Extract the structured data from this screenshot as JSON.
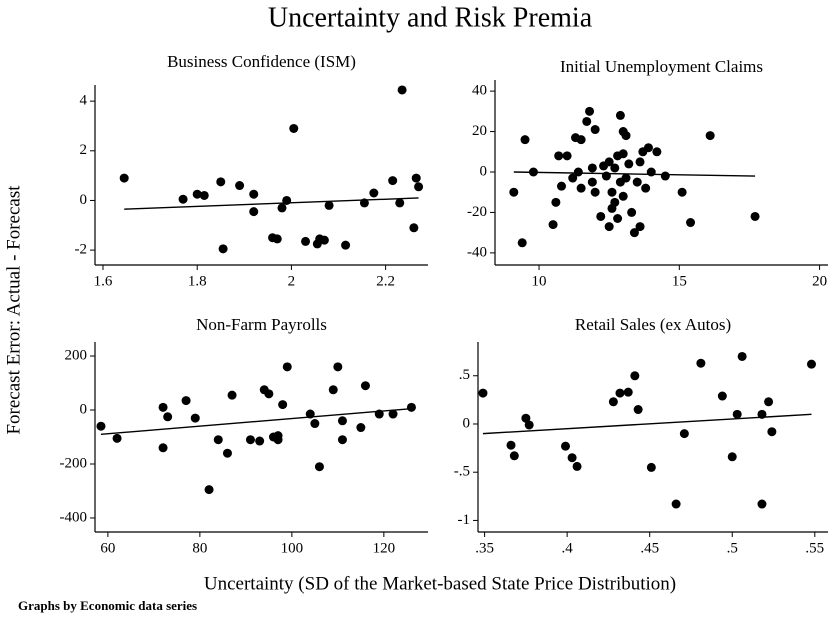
{
  "title": "Uncertainty and Risk Premia",
  "ylabel": "Forecast Error: Actual - Forecast",
  "xlabel": "Uncertainty (SD of the Market-based State Price Distribution)",
  "note": "Graphs by Economic data series",
  "chart_data": [
    {
      "type": "scatter",
      "title": "Business Confidence (ISM)",
      "color": "#000000",
      "x": [
        1.645,
        1.77,
        1.8,
        1.815,
        1.85,
        1.855,
        1.89,
        1.92,
        1.92,
        1.96,
        1.97,
        1.98,
        1.99,
        2.005,
        2.03,
        2.055,
        2.06,
        2.07,
        2.08,
        2.115,
        2.155,
        2.175,
        2.215,
        2.23,
        2.235,
        2.26,
        2.265,
        2.27
      ],
      "y": [
        0.9,
        0.05,
        0.25,
        0.2,
        0.75,
        -1.95,
        0.6,
        0.25,
        -0.45,
        -1.5,
        -1.55,
        -0.3,
        0,
        2.9,
        -1.65,
        -1.75,
        -1.55,
        -1.6,
        -0.2,
        -1.8,
        -0.1,
        0.3,
        0.8,
        -0.1,
        4.45,
        -1.1,
        0.9,
        0.55
      ],
      "fit": {
        "x": [
          1.645,
          2.27
        ],
        "y": [
          -0.35,
          0.1
        ]
      },
      "xlim": [
        1.583,
        2.29
      ],
      "ylim": [
        -2.6,
        4.65
      ],
      "xticks": [
        1.6,
        1.8,
        2,
        2.2
      ],
      "yticks": [
        -2,
        0,
        2,
        4
      ]
    },
    {
      "type": "scatter",
      "title": "Initial Unemployment Claims",
      "color": "#000000",
      "x": [
        9.1,
        9.4,
        9.5,
        9.8,
        10.5,
        10.6,
        10.7,
        10.8,
        11,
        11.2,
        11.3,
        11.4,
        11.5,
        11.5,
        11.7,
        11.8,
        11.9,
        11.9,
        12,
        12,
        12.2,
        12.3,
        12.4,
        12.5,
        12.5,
        12.6,
        12.6,
        12.7,
        12.7,
        12.8,
        12.8,
        12.9,
        12.9,
        13,
        13,
        13,
        13.1,
        13.1,
        13.2,
        13.3,
        13.4,
        13.5,
        13.6,
        13.6,
        13.7,
        13.8,
        13.9,
        14,
        14.2,
        14.5,
        15.1,
        15.4,
        16.1,
        17.7
      ],
      "y": [
        -10,
        -35,
        16,
        0,
        -26,
        -15,
        8,
        -7,
        8,
        -3,
        17,
        0,
        16,
        -8,
        25,
        30,
        2,
        -5,
        -10,
        21,
        -22,
        3,
        -2,
        5,
        -27,
        -18,
        -10,
        -15,
        2,
        8,
        -23,
        28,
        -5,
        20,
        9,
        -12,
        -3,
        18,
        4,
        -20,
        -30,
        -5,
        -27,
        5,
        10,
        -8,
        12,
        0,
        10,
        -2,
        -10,
        -25,
        18,
        -22
      ],
      "fit": {
        "x": [
          9.1,
          17.7
        ],
        "y": [
          0,
          -2
        ]
      },
      "xlim": [
        8.43,
        20.3
      ],
      "ylim": [
        -46,
        45.5
      ],
      "xticks": [
        10,
        15,
        20
      ],
      "yticks": [
        -40,
        -20,
        0,
        20,
        40
      ]
    },
    {
      "type": "scatter",
      "title": "Non-Farm Payrolls",
      "color": "#000000",
      "x": [
        58.5,
        62,
        72,
        72,
        73,
        77,
        79,
        82,
        84,
        86,
        87,
        91,
        93,
        94,
        95,
        96,
        97,
        97,
        98,
        99,
        104,
        105,
        106,
        109,
        110,
        111,
        111,
        115,
        116,
        119,
        122,
        126
      ],
      "y": [
        -60,
        -105,
        10,
        -140,
        -25,
        35,
        -30,
        -295,
        -110,
        -160,
        55,
        -110,
        -115,
        75,
        60,
        -100,
        -110,
        -95,
        20,
        160,
        -15,
        -50,
        -210,
        75,
        160,
        -110,
        -40,
        -65,
        90,
        -15,
        -15,
        10
      ],
      "fit": {
        "x": [
          58.5,
          126
        ],
        "y": [
          -90,
          5
        ]
      },
      "xlim": [
        57.2,
        129.6
      ],
      "ylim": [
        -452,
        252
      ],
      "xticks": [
        60,
        80,
        100,
        120
      ],
      "yticks": [
        -400,
        -200,
        0,
        200
      ]
    },
    {
      "type": "scatter",
      "title": "Retail Sales (ex Autos)",
      "color": "#000000",
      "x": [
        0.349,
        0.366,
        0.368,
        0.375,
        0.377,
        0.399,
        0.403,
        0.406,
        0.428,
        0.432,
        0.437,
        0.441,
        0.443,
        0.451,
        0.466,
        0.471,
        0.481,
        0.494,
        0.5,
        0.503,
        0.506,
        0.518,
        0.518,
        0.522,
        0.524,
        0.548
      ],
      "y": [
        0.32,
        -0.22,
        -0.33,
        0.06,
        -0.01,
        -0.23,
        -0.35,
        -0.44,
        0.23,
        0.32,
        0.33,
        0.5,
        0.15,
        -0.45,
        -0.83,
        -0.1,
        0.63,
        0.29,
        -0.34,
        0.1,
        0.7,
        0.1,
        -0.83,
        0.23,
        -0.08,
        0.62
      ],
      "fit": {
        "x": [
          0.349,
          0.548
        ],
        "y": [
          -0.1,
          0.1
        ]
      },
      "xlim": [
        0.346,
        0.558
      ],
      "ylim": [
        -1.12,
        0.85
      ],
      "xticks": [
        {
          "value": 0.35,
          "label": ".35"
        },
        {
          "value": 0.4,
          "label": ".4"
        },
        {
          "value": 0.45,
          "label": ".45"
        },
        {
          "value": 0.5,
          "label": ".5"
        },
        {
          "value": 0.55,
          "label": ".55"
        }
      ],
      "yticks": [
        {
          "value": -1,
          "label": "-1"
        },
        {
          "value": -0.5,
          "label": "-.5"
        },
        {
          "value": 0,
          "label": "0"
        },
        {
          "value": 0.5,
          "label": ".5"
        }
      ]
    }
  ]
}
